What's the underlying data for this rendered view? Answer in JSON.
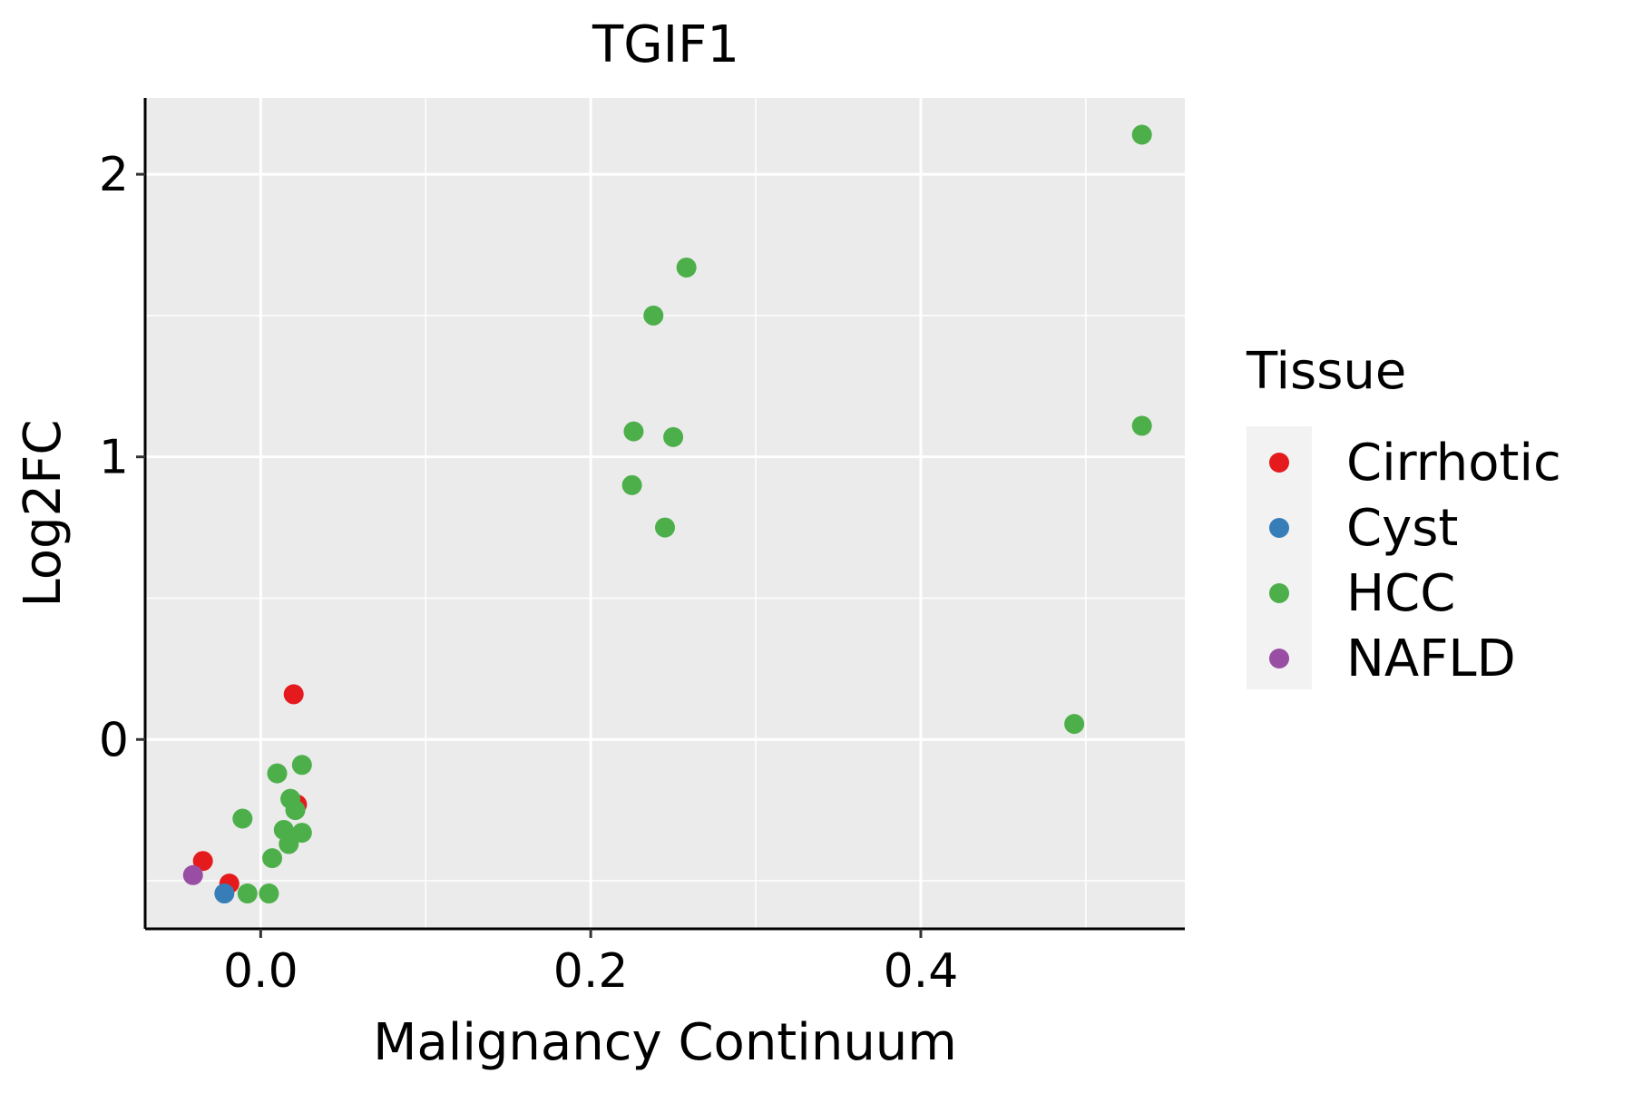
{
  "chart_data": {
    "type": "scatter",
    "title": "TGIF1",
    "xlabel": "Malignancy Continuum",
    "ylabel": "Log2FC",
    "xlim": [
      -0.07,
      0.56
    ],
    "ylim": [
      -0.67,
      2.27
    ],
    "x_ticks": [
      0.0,
      0.2,
      0.4
    ],
    "x_tick_labels": [
      "0.0",
      "0.2",
      "0.4"
    ],
    "x_minor_ticks": [
      0.1,
      0.3,
      0.5
    ],
    "y_ticks": [
      0,
      1,
      2
    ],
    "y_tick_labels": [
      "0",
      "1",
      "2"
    ],
    "y_minor_ticks": [
      -0.5,
      0.5,
      1.5
    ],
    "grid": true,
    "panel_background": "#EBEBEB",
    "legend": {
      "title": "Tissue",
      "position": "right",
      "entries": [
        {
          "label": "Cirrhotic",
          "color": "#E41A1C"
        },
        {
          "label": "Cyst",
          "color": "#377EB8"
        },
        {
          "label": "HCC",
          "color": "#4DAF4A"
        },
        {
          "label": "NAFLD",
          "color": "#984EA3"
        }
      ]
    },
    "series": [
      {
        "name": "Cirrhotic",
        "color": "#E41A1C",
        "points": [
          {
            "x": -0.035,
            "y": -0.43
          },
          {
            "x": -0.019,
            "y": -0.51
          },
          {
            "x": 0.02,
            "y": 0.16
          },
          {
            "x": 0.022,
            "y": -0.23
          }
        ]
      },
      {
        "name": "Cyst",
        "color": "#377EB8",
        "points": [
          {
            "x": -0.022,
            "y": -0.545
          }
        ]
      },
      {
        "name": "HCC",
        "color": "#4DAF4A",
        "points": [
          {
            "x": 0.534,
            "y": 2.14
          },
          {
            "x": 0.258,
            "y": 1.67
          },
          {
            "x": 0.238,
            "y": 1.5
          },
          {
            "x": 0.226,
            "y": 1.09
          },
          {
            "x": 0.25,
            "y": 1.07
          },
          {
            "x": 0.225,
            "y": 0.9
          },
          {
            "x": 0.245,
            "y": 0.75
          },
          {
            "x": 0.534,
            "y": 1.11
          },
          {
            "x": 0.493,
            "y": 0.055
          },
          {
            "x": 0.025,
            "y": -0.09
          },
          {
            "x": 0.01,
            "y": -0.12
          },
          {
            "x": 0.018,
            "y": -0.21
          },
          {
            "x": 0.021,
            "y": -0.25
          },
          {
            "x": -0.011,
            "y": -0.28
          },
          {
            "x": 0.014,
            "y": -0.32
          },
          {
            "x": 0.025,
            "y": -0.33
          },
          {
            "x": 0.017,
            "y": -0.37
          },
          {
            "x": 0.007,
            "y": -0.42
          },
          {
            "x": -0.008,
            "y": -0.545
          },
          {
            "x": 0.005,
            "y": -0.545
          }
        ]
      },
      {
        "name": "NAFLD",
        "color": "#984EA3",
        "points": [
          {
            "x": -0.041,
            "y": -0.48
          }
        ]
      }
    ]
  }
}
